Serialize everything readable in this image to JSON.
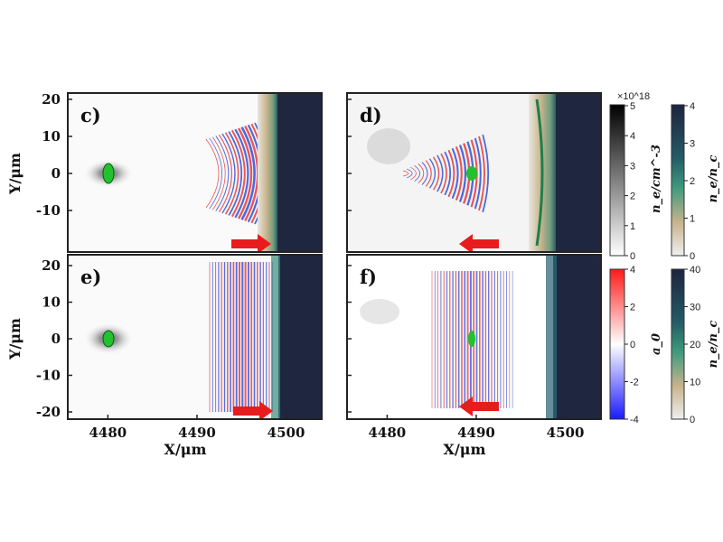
{
  "figure": {
    "xlabel": "X/μm",
    "ylabel": "Y/μm",
    "x_ticks": [
      "4480",
      "4490",
      "4500"
    ],
    "y_ticks_top": [
      "20",
      "10",
      "0",
      "-10"
    ],
    "y_ticks_bottom": [
      "20",
      "10",
      "0",
      "-10",
      "-20"
    ],
    "colorbars": {
      "density": {
        "label": "n_e/cm^-3",
        "exponent": "×10^18",
        "ticks": [
          "5",
          "4",
          "3",
          "2",
          "1",
          "0"
        ]
      },
      "plasma_top": {
        "label": "n_e/n_c",
        "ticks": [
          "4",
          "3",
          "2",
          "1",
          "0"
        ]
      },
      "a0": {
        "label": "a_0",
        "ticks": [
          "4",
          "2",
          "0",
          "-2",
          "-4"
        ]
      },
      "plasma_bottom": {
        "label": "n_e/n_c",
        "ticks": [
          "40",
          "30",
          "20",
          "10",
          "0"
        ]
      }
    },
    "colors": {
      "wave_red": "#e8383a",
      "wave_blue": "#2f4fd8",
      "arrow": "#e81c1c",
      "electron_green": "#21c12f",
      "plasma_dark": "#1f2740",
      "plasma_teal": "#2f8a78",
      "plasma_tan": "#cbb58e"
    }
  },
  "chart_data": [
    {
      "type": "heatmap",
      "panel": "c)",
      "x_range": [
        4475.5,
        4504
      ],
      "y_range": [
        -20,
        23
      ],
      "electron_bunch": {
        "x": 4480.5,
        "y": -1.2
      },
      "wave_packet": {
        "center_x": 4496.5,
        "extent_x": [
          4490,
          4499
        ]
      },
      "plasma_edge_x": 4500,
      "arrow_direction": "right"
    },
    {
      "type": "heatmap",
      "panel": "d)",
      "x_range": [
        4475.5,
        4504
      ],
      "y_range": [
        -20,
        23
      ],
      "electron_bunch": {
        "x": 4490,
        "y": 0
      },
      "wave_packet": {
        "center_x": 4489,
        "extent_x": [
          4483.5,
          4493
        ]
      },
      "plasma_edge_x": 4500,
      "arrow_direction": "left"
    },
    {
      "type": "heatmap",
      "panel": "e)",
      "x_range": [
        4475.5,
        4504
      ],
      "y_range": [
        -22,
        23
      ],
      "electron_bunch": {
        "x": 4480.5,
        "y": 0
      },
      "wave_packet": {
        "center_x": 4496,
        "extent_x": [
          4492.5,
          4499.5
        ]
      },
      "plasma_edge_x": 4500,
      "arrow_direction": "right"
    },
    {
      "type": "heatmap",
      "panel": "f)",
      "x_range": [
        4475.5,
        4504
      ],
      "y_range": [
        -22,
        23
      ],
      "electron_bunch": {
        "x": 4490,
        "y": 0
      },
      "wave_packet": {
        "center_x": 4490,
        "extent_x": [
          4485,
          4495
        ]
      },
      "plasma_edge_x": 4500,
      "arrow_direction": "left"
    }
  ]
}
